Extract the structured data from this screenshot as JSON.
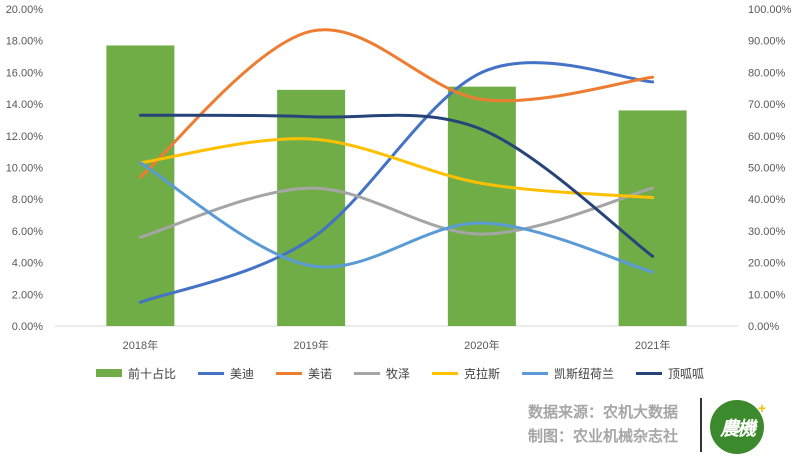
{
  "chart_data": {
    "type": "bar",
    "categories": [
      "2018年",
      "2019年",
      "2020年",
      "2021年"
    ],
    "left_axis": {
      "ticks": [
        "0.00%",
        "2.00%",
        "4.00%",
        "6.00%",
        "8.00%",
        "10.00%",
        "12.00%",
        "14.00%",
        "16.00%",
        "18.00%",
        "20.00%"
      ],
      "range": [
        0,
        20
      ]
    },
    "right_axis": {
      "ticks": [
        "0.00%",
        "10.00%",
        "20.00%",
        "30.00%",
        "40.00%",
        "50.00%",
        "60.00%",
        "70.00%",
        "80.00%",
        "90.00%",
        "100.00%"
      ],
      "range": [
        0,
        100
      ]
    },
    "bar_series": {
      "name": "前十占比",
      "axis": "right",
      "values": [
        88.5,
        74.5,
        75.5,
        68.0
      ],
      "color": "#70ad47"
    },
    "line_series": [
      {
        "name": "美迪",
        "values": [
          1.5,
          5.5,
          16.0,
          15.4
        ],
        "color": "#4472c4"
      },
      {
        "name": "美诺",
        "values": [
          9.4,
          18.6,
          14.3,
          15.7
        ],
        "color": "#ed7d31"
      },
      {
        "name": "牧泽",
        "values": [
          5.6,
          8.7,
          5.8,
          8.7
        ],
        "color": "#a5a5a5"
      },
      {
        "name": "克拉斯",
        "values": [
          10.3,
          11.8,
          9.0,
          8.1
        ],
        "color": "#ffc000"
      },
      {
        "name": "凯斯纽荷兰",
        "values": [
          10.3,
          3.8,
          6.5,
          3.4
        ],
        "color": "#5b9bd5"
      },
      {
        "name": "顶呱呱",
        "values": [
          13.3,
          13.2,
          12.4,
          4.4
        ],
        "color": "#264478"
      }
    ],
    "grid": false,
    "legend_position": "bottom"
  },
  "source": {
    "line1": "数据来源：农机大数据",
    "line2": "制图：农业机械杂志社"
  },
  "logo": {
    "text": "農機"
  }
}
